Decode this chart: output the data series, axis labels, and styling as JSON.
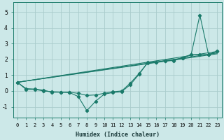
{
  "xlabel": "Humidex (Indice chaleur)",
  "bg_color": "#cce8e8",
  "grid_color": "#aacccc",
  "line_color": "#1a7a6a",
  "xlim": [
    -0.5,
    23.5
  ],
  "ylim": [
    -1.7,
    5.6
  ],
  "yticks": [
    -1,
    0,
    1,
    2,
    3,
    4,
    5
  ],
  "xticks": [
    0,
    1,
    2,
    3,
    4,
    5,
    6,
    7,
    8,
    9,
    10,
    11,
    12,
    13,
    14,
    15,
    16,
    17,
    18,
    19,
    20,
    21,
    22,
    23
  ],
  "straight_line1": [
    [
      0,
      0.55
    ],
    [
      23,
      2.5
    ]
  ],
  "straight_line2": [
    [
      0,
      0.55
    ],
    [
      23,
      2.35
    ]
  ],
  "straight_line3": [
    [
      0,
      0.55
    ],
    [
      23,
      2.4
    ]
  ],
  "main_curve_x": [
    0,
    1,
    2,
    3,
    4,
    5,
    6,
    7,
    8,
    9,
    10,
    11,
    12,
    13,
    14,
    15,
    16,
    17,
    18,
    19,
    20,
    21,
    22,
    23
  ],
  "main_curve_y": [
    0.55,
    0.15,
    0.12,
    0.05,
    -0.08,
    -0.08,
    -0.1,
    -0.35,
    -1.25,
    -0.65,
    -0.2,
    -0.1,
    -0.05,
    0.4,
    1.05,
    1.8,
    1.82,
    1.92,
    1.95,
    2.1,
    2.3,
    4.8,
    2.3,
    2.5
  ],
  "second_curve_x": [
    0,
    1,
    2,
    3,
    4,
    5,
    6,
    7,
    8,
    9,
    10,
    11,
    12,
    13,
    14,
    15,
    16,
    17,
    18,
    19,
    20,
    21,
    22,
    23
  ],
  "second_curve_y": [
    0.55,
    0.1,
    0.1,
    0.0,
    -0.05,
    -0.07,
    -0.08,
    -0.15,
    -0.28,
    -0.25,
    -0.15,
    -0.05,
    0.0,
    0.5,
    1.1,
    1.78,
    1.82,
    1.9,
    1.92,
    2.1,
    2.3,
    2.3,
    2.3,
    2.5
  ],
  "xlabel_fontsize": 6.0,
  "tick_fontsize_x": 5.0,
  "tick_fontsize_y": 5.5
}
